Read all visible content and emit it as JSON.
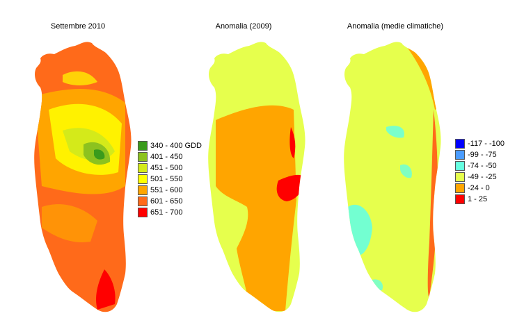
{
  "panels": [
    {
      "title": "Settembre 2010",
      "legend": [
        {
          "label": "340 - 400 GDD",
          "color": "#3a9b1c"
        },
        {
          "label": "401 - 450",
          "color": "#8cc21f"
        },
        {
          "label": "451 - 500",
          "color": "#d4ea1a"
        },
        {
          "label": "501 - 550",
          "color": "#ffff00"
        },
        {
          "label": "551 - 600",
          "color": "#ffa500"
        },
        {
          "label": "601 - 650",
          "color": "#ff6a1a"
        },
        {
          "label": "651 - 700",
          "color": "#ff0000"
        }
      ]
    },
    {
      "title": "Anomalia (2009)",
      "legend": []
    },
    {
      "title": "Anomalia (medie climatiche)",
      "legend": [
        {
          "label": "-117 - -100",
          "color": "#0000ff"
        },
        {
          "label": "-99 - -75",
          "color": "#4a9cff"
        },
        {
          "label": "-74 - -50",
          "color": "#66ffe0"
        },
        {
          "label": "-49 - -25",
          "color": "#e6ff4d"
        },
        {
          "label": "-24 - 0",
          "color": "#ffa500"
        },
        {
          "label": "1 - 25",
          "color": "#ff0000"
        }
      ]
    }
  ]
}
